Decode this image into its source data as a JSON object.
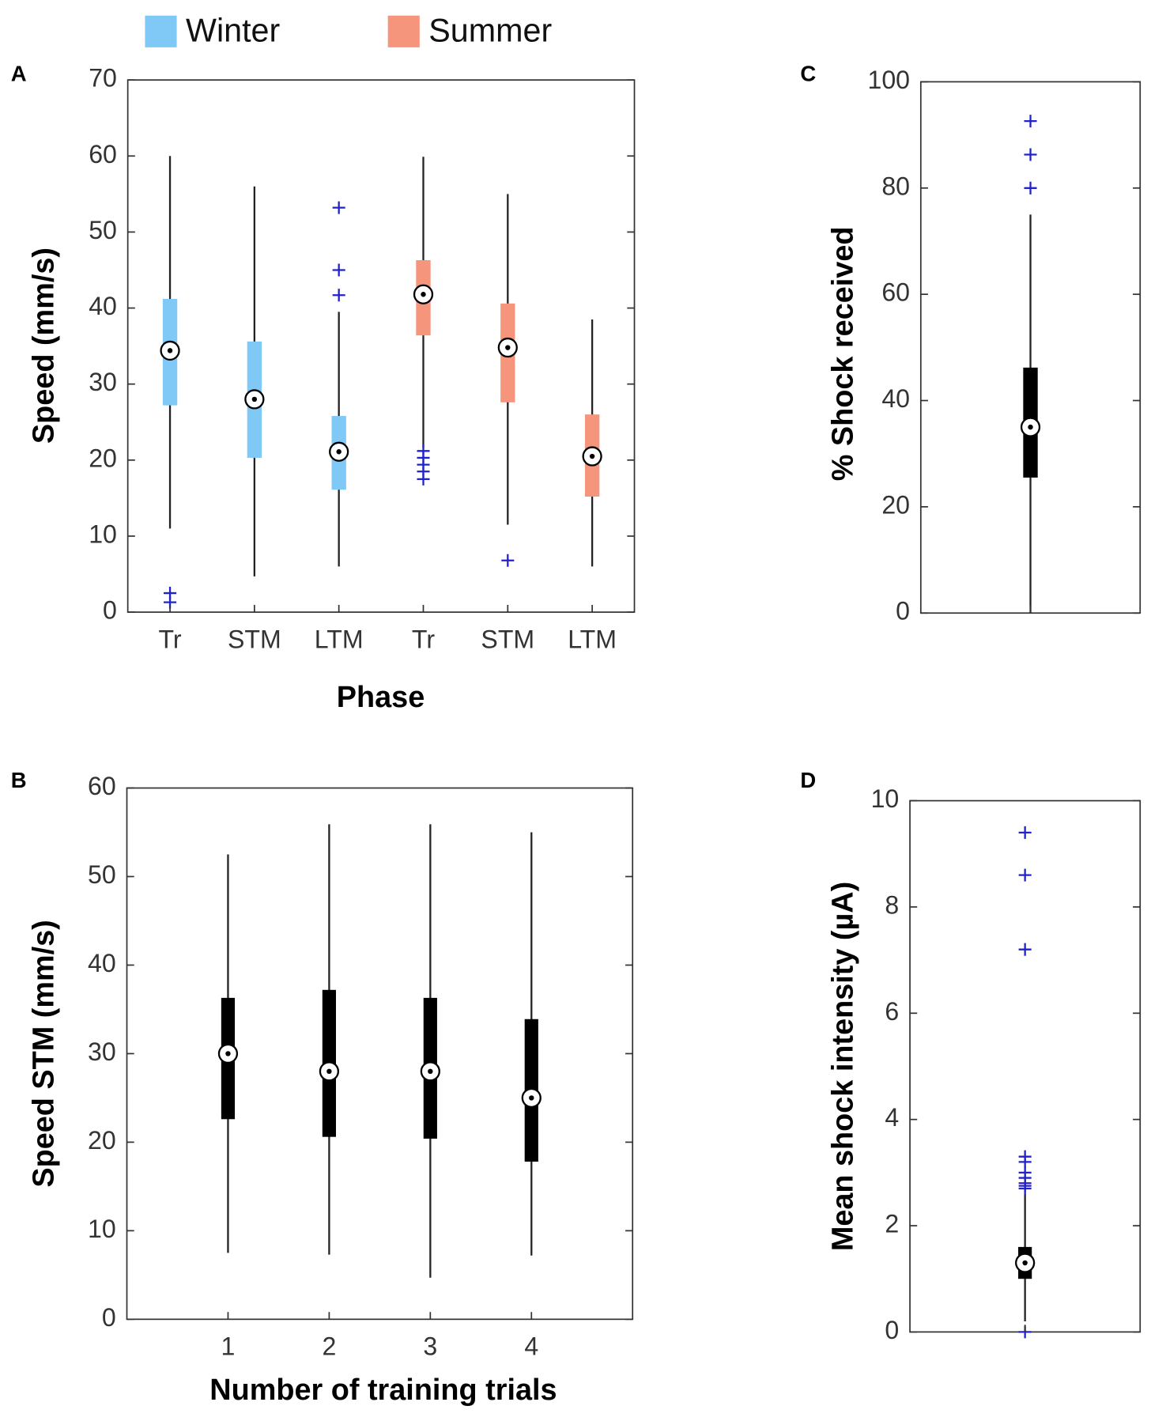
{
  "chart_data": [
    {
      "type": "box",
      "panel": "A",
      "ylabel": "Speed (mm/s)",
      "xlabel": "Phase",
      "categories": [
        "Tr",
        "STM",
        "LTM",
        "Tr",
        "STM",
        "LTM"
      ],
      "ylim": [
        0,
        70
      ],
      "yticks": [
        0,
        10,
        20,
        30,
        40,
        50,
        60,
        70
      ],
      "grid": false,
      "series": [
        {
          "name": "Winter",
          "color": "#80c8f5",
          "boxes": [
            {
              "whislo": 11,
              "q1": 27.2,
              "med": 34.4,
              "q3": 41.2,
              "whishi": 60,
              "fliers": [
                1.3,
                2.5
              ]
            },
            {
              "whislo": 4.7,
              "q1": 20.3,
              "med": 28,
              "q3": 35.6,
              "whishi": 56,
              "fliers": []
            },
            {
              "whislo": 6,
              "q1": 16.1,
              "med": 21.1,
              "q3": 25.8,
              "whishi": 39.5,
              "fliers": [
                53.2,
                45,
                41.7
              ]
            }
          ]
        },
        {
          "name": "Summer",
          "color": "#f5957c",
          "boxes": [
            {
              "whislo": 21.6,
              "q1": 36.4,
              "med": 41.8,
              "q3": 46.3,
              "whishi": 59.9,
              "fliers": [
                21.2,
                20.3,
                19.4,
                18.5,
                17.5
              ]
            },
            {
              "whislo": 11.5,
              "q1": 27.6,
              "med": 34.8,
              "q3": 40.6,
              "whishi": 55,
              "fliers": [
                6.8
              ]
            },
            {
              "whislo": 6,
              "q1": 15.2,
              "med": 20.5,
              "q3": 26,
              "whishi": 38.5,
              "fliers": []
            }
          ]
        }
      ]
    },
    {
      "type": "box",
      "panel": "B",
      "ylabel": "Speed STM  (mm/s)",
      "xlabel": "Number of training trials",
      "categories": [
        "1",
        "2",
        "3",
        "4"
      ],
      "color": "#000000",
      "ylim": [
        0,
        60
      ],
      "yticks": [
        0,
        10,
        20,
        30,
        40,
        50,
        60
      ],
      "grid": false,
      "boxes": [
        {
          "whislo": 7.5,
          "q1": 22.6,
          "med": 30,
          "q3": 36.3,
          "whishi": 52.5,
          "fliers": []
        },
        {
          "whislo": 7.3,
          "q1": 20.6,
          "med": 28,
          "q3": 37.2,
          "whishi": 55.9,
          "fliers": []
        },
        {
          "whislo": 4.7,
          "q1": 20.4,
          "med": 28,
          "q3": 36.3,
          "whishi": 55.9,
          "fliers": []
        },
        {
          "whislo": 7.2,
          "q1": 17.8,
          "med": 25,
          "q3": 33.9,
          "whishi": 55,
          "fliers": []
        }
      ]
    },
    {
      "type": "box",
      "panel": "C",
      "ylabel": "% Shock received",
      "color": "#000000",
      "ylim": [
        0,
        100
      ],
      "yticks": [
        0,
        20,
        40,
        60,
        80,
        100
      ],
      "grid": false,
      "boxes": [
        {
          "whislo": 0,
          "q1": 25.5,
          "med": 35,
          "q3": 46.2,
          "whishi": 75,
          "fliers": [
            92.6,
            86.3,
            80
          ]
        }
      ]
    },
    {
      "type": "box",
      "panel": "D",
      "ylabel": "Mean shock intensity (µA)",
      "color": "#000000",
      "ylim": [
        0,
        10
      ],
      "yticks": [
        0,
        2,
        4,
        6,
        8,
        10
      ],
      "grid": false,
      "boxes": [
        {
          "whislo": 0.2,
          "q1": 1.0,
          "med": 1.3,
          "q3": 1.6,
          "whishi": 2.6,
          "fliers": [
            9.4,
            8.6,
            7.2,
            3.3,
            3.2,
            3.0,
            2.9,
            2.8,
            2.75,
            2.7,
            0
          ]
        }
      ]
    }
  ]
}
